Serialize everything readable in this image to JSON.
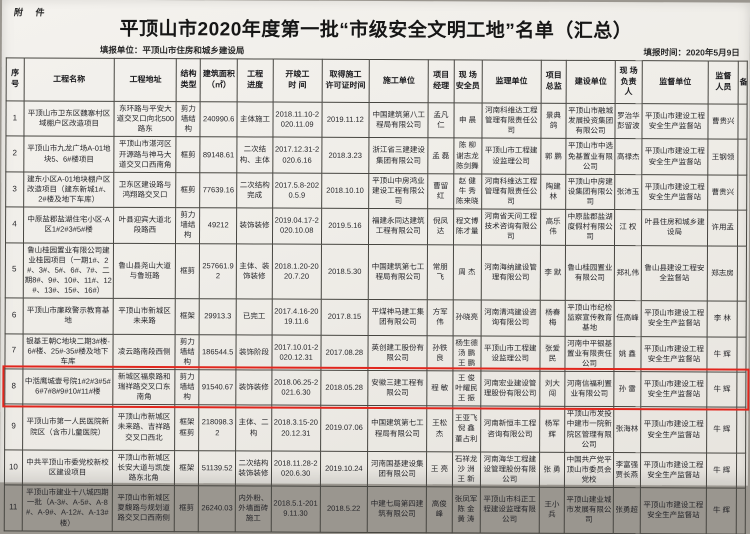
{
  "attachment_label": "附 件",
  "title": "平顶山市2020年度第一批“市级安全文明工地”名单（汇总）",
  "meta": {
    "report_unit": "填报单位：平顶山市住房和城乡建设局",
    "report_date": "填报时间：2020年5月9日"
  },
  "colors": {
    "highlight_box": "#e1261d",
    "paper": "#efede8",
    "table_line": "#474641"
  },
  "table": {
    "headers": [
      "序\n号",
      "工程名称",
      "工程地址",
      "结构\n类型",
      "建筑面积\n（㎡）",
      "工程\n进度",
      "开竣工\n时  间",
      "取得施工\n许可证时间",
      "施工单位",
      "项目\n经理",
      "现 场\n安全员",
      "监理单位",
      "项目\n总监",
      "建设单位",
      "现 场\n负责人",
      "监督单位",
      "监督\n人员",
      "备"
    ],
    "highlighted_row_index": 7,
    "rows": [
      [
        "1",
        "平顶山市卫东区魏寨村区域棚户区改造项目",
        "东环路与平安大道交叉口向北500路东",
        "剪力\n墙结\n构",
        "240990.6",
        "主体施工",
        "2018.11.10-2020.11.09",
        "2019.11.12",
        "中国建筑第八工程局有限公司",
        "孟凡仁",
        "申 晨",
        "河南科维达工程管理有限责任公司",
        "景典鸽",
        "平顶山市融城发展投资集团有限公司",
        "罗治华\n彭留波",
        "平顶山市建设工程安全生产监督站",
        "曹贵兴",
        ""
      ],
      [
        "2",
        "平顶山市九龙广场A-01地块5、6#楼项目",
        "平顶山市湛河区开源路与神马大道交叉口西南角",
        "框剪",
        "89148.61",
        "二次结构、主体",
        "2017.12.31-2020.6.16",
        "2018.3.23",
        "浙江省三建建设集团有限公司",
        "孟 磊",
        "陈 柳\n谢志龙\n陈剑舞",
        "平顶山市工程建设监理公司",
        "郭 鹏",
        "平顶山市中选免基置业有限公司",
        "高禄杰",
        "平顶山市建设工程安全生产监督站",
        "王钢领",
        ""
      ],
      [
        "3",
        "建东小区A-01地块棚户区改造项目（建东新城1#、2#楼及地下车库）",
        "卫东区建设路与鸿翔路交叉口",
        "框剪",
        "77639.16",
        "二次结构完成",
        "2017.5.8-2020.5.9",
        "2018.10.10",
        "平顶山中房鸿业建设工程有限公司",
        "曹留红",
        "赵 健\n牛 秀\n陈来晓",
        "河南科维达工程管理有限责任公司",
        "陶建林",
        "平顶山中房建设集团有限公司",
        "张沛玉",
        "平顶山市建设工程安全生产监督站",
        "曹贵兴",
        ""
      ],
      [
        "4",
        "中原盐郡盐湖住宅小区-A区1#2#3#5#楼",
        "叶县迎宾大道北段路西",
        "剪力\n墙结\n构",
        "49212",
        "装饰装修",
        "2019.04.17-2020.10.08",
        "2019.5.16",
        "福建永同达建筑工程有限公司",
        "倪凤达",
        "程文博\n陈才量",
        "河南省天问工程技术咨询有限公司",
        "高乐伟",
        "中原盐郡盐湖度假村有限公司",
        "江 权",
        "叶县住房和城乡建设局",
        "许用孟",
        ""
      ],
      [
        "5",
        "鲁山桂园置业有限公司建业桂园项目（一期1#、2#、3#、5#、6#、7#、二期8#、9#、10#、11#、12#、13#、15#、16#）",
        "鲁山县尧山大道与鲁班路",
        "框剪",
        "257661.92",
        "主体、装饰装修",
        "2018.1.20-2020.7.20",
        "2018.5.30",
        "中国建筑第七工程局有限公司",
        "常朋飞",
        "周 杰",
        "河南海纳建设管理有限公司",
        "李 默",
        "鲁山桂园置业有限公司",
        "郑礼伟",
        "鲁山县建设工程安全监督站",
        "郑志房",
        ""
      ],
      [
        "6",
        "平顶山市廉政警示教育基地",
        "平顶山市新城区未来路",
        "框架",
        "29913.3",
        "已完工",
        "2017.4.16-2019.11.6",
        "2017.8.15",
        "平煤神马建工集团有限公司",
        "方军伟",
        "孙晓亮",
        "河南清鸿建设咨询有限公司",
        "杨春梅",
        "平顶山市纪检监察宣传教育基地",
        "任高峰",
        "平顶山市建设工程安全生产监督站",
        "李 林",
        ""
      ],
      [
        "7",
        "银基王朝C地块二期3#楼-6#楼、25#-35#楼及地下车库",
        "凌云路南段西侧",
        "剪力\n墙结\n构",
        "186544.5",
        "装饰阶段",
        "2017.10.01-2020.12.31",
        "2017.08.28",
        "英创建工股份有限公司",
        "孙铁良",
        "杨生德\n汤 鹏\n王 鹏",
        "平顶山市工程建设监理公司",
        "张爱民",
        "河南中平银基置业有限责任公司",
        "姚 鑫",
        "平顶山市建设工程安全生产监督站",
        "牛 辉",
        ""
      ],
      [
        "8",
        "中湉鹰城壹号院1#2#3#5#6#7#8#9#10#11#楼",
        "新城区福泉路和瑞祥路交叉口东南角",
        "剪力\n墙结\n构",
        "91540.67",
        "装饰装修",
        "2018.06.25-2021.6.30",
        "2018.05.28",
        "安徽三建工程有限公司",
        "程 敏",
        "王 俊\n叶耀民\n王 振",
        "河南宏业建设管理股份有限公司",
        "刘大闯",
        "河南信福利置业有限公司",
        "孙 雷",
        "平顶山市建设工程安全生产监督站",
        "牛 辉",
        ""
      ],
      [
        "9",
        "平顶山市第一人民医院新院区（含市儿童医院）",
        "平顶山市新城区未来路、吉祥路交叉口西北",
        "框架\n框剪",
        "218098.32",
        "主体、二构",
        "2018.3.15-2020.12.31",
        "2019.07.06",
        "中国建筑第七工程局有限公司",
        "王松杰",
        "王亚飞\n倪 鑫\n董占利",
        "河南新恒丰工程咨询有限公司",
        "杨军辉",
        "平顶山市发投中建市一院新院区管理有限公司",
        "张海林",
        "平顶山市建设工程安全生产监督站",
        "牛 辉",
        ""
      ],
      [
        "10",
        "中共平顶山市委党校新校区建设项目",
        "平顶山市新城区长安大道与凯旋路东北角",
        "框架",
        "51139.52",
        "二次结构装饰装修",
        "2018.11.28-2020.6.30",
        "2019.10.24",
        "河南国基建设集团有限公司",
        "王 亮",
        "石祥龙\n沙 洲\n王 新",
        "河南海华工程建设管理股份有限公司",
        "张 勇",
        "中国共产党平顶山市委员会党校",
        "李富强\n贾长燕",
        "平顶山市建设工程安全生产监督站",
        "牛 辉",
        ""
      ],
      [
        "11",
        "平顶山市建业十八城四期一批（A-3#、A-5#、A-8#、A-9#、A-12#、A-13#楼）",
        "平顶山市新城区夏馥路与规划道路交叉口西南侧",
        "框剪",
        "26240.03",
        "内外粉、外墙面砖施工",
        "2018.5.1-2019.11.30",
        "2018.5.22",
        "中建七局第四建筑有限公司",
        "高俊峰",
        "张凤军\n陈 金\n黄 涛",
        "平顶山市科正工程建设监理有限公司",
        "王小兵",
        "平顶山建业城市发展有限公司",
        "张勇超",
        "平顶山市建设工程安全生产监督站",
        "牛 辉",
        ""
      ]
    ]
  }
}
